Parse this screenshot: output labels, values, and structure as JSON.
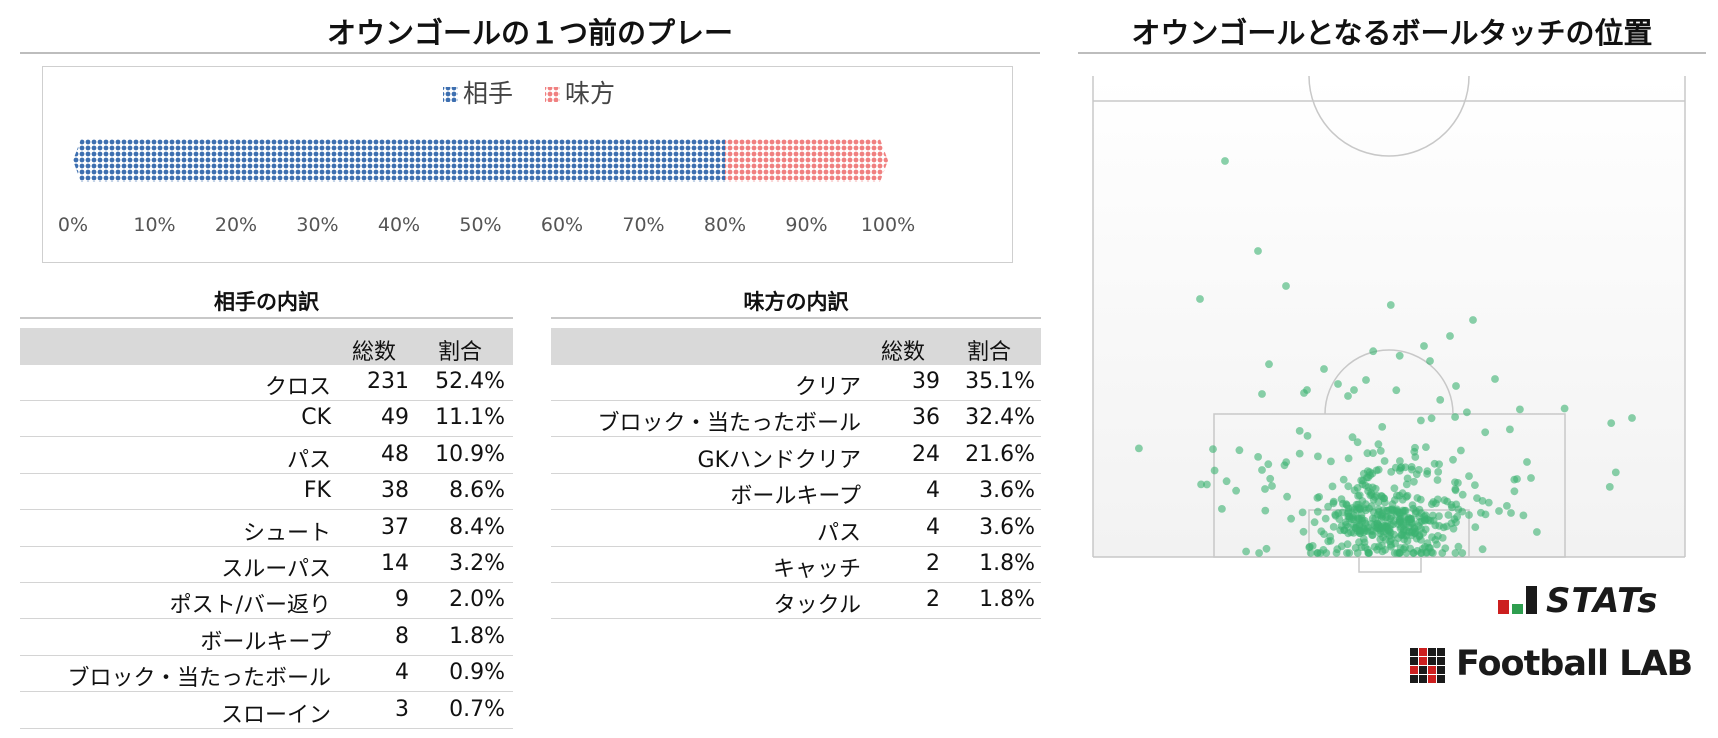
{
  "left_title": "オウンゴールの１つ前のプレー",
  "right_title": "オウンゴールとなるボールタッチの位置",
  "chart_data": [
    {
      "type": "bar",
      "orientation": "horizontal-stacked-100",
      "series": [
        {
          "name": "相手",
          "values": [
            80
          ],
          "color": "#3d6fb0"
        },
        {
          "name": "味方",
          "values": [
            20
          ],
          "color": "#f08080"
        }
      ],
      "xticks": [
        "0%",
        "10%",
        "20%",
        "30%",
        "40%",
        "50%",
        "60%",
        "70%",
        "80%",
        "90%",
        "100%"
      ],
      "xlim": [
        0,
        100
      ],
      "legend": "top-center",
      "grid": false
    },
    {
      "type": "scatter",
      "color": "#3cb371"
    }
  ],
  "opponent_table": {
    "title": "相手の内訳",
    "headers": {
      "total": "総数",
      "ratio": "割合"
    },
    "rows": [
      {
        "label": "クロス",
        "total": "231",
        "ratio": "52.4%"
      },
      {
        "label": "CK",
        "total": "49",
        "ratio": "11.1%"
      },
      {
        "label": "パス",
        "total": "48",
        "ratio": "10.9%"
      },
      {
        "label": "FK",
        "total": "38",
        "ratio": "8.6%"
      },
      {
        "label": "シュート",
        "total": "37",
        "ratio": "8.4%"
      },
      {
        "label": "スルーパス",
        "total": "14",
        "ratio": "3.2%"
      },
      {
        "label": "ポスト/バー返り",
        "total": "9",
        "ratio": "2.0%"
      },
      {
        "label": "ボールキープ",
        "total": "8",
        "ratio": "1.8%"
      },
      {
        "label": "ブロック・当たったボール",
        "total": "4",
        "ratio": "0.9%"
      },
      {
        "label": "スローイン",
        "total": "3",
        "ratio": "0.7%"
      }
    ]
  },
  "own_table": {
    "title": "味方の内訳",
    "headers": {
      "total": "総数",
      "ratio": "割合"
    },
    "rows": [
      {
        "label": "クリア",
        "total": "39",
        "ratio": "35.1%"
      },
      {
        "label": "ブロック・当たったボール",
        "total": "36",
        "ratio": "32.4%"
      },
      {
        "label": "GKハンドクリア",
        "total": "24",
        "ratio": "21.6%"
      },
      {
        "label": "ボールキープ",
        "total": "4",
        "ratio": "3.6%"
      },
      {
        "label": "パス",
        "total": "4",
        "ratio": "3.6%"
      },
      {
        "label": "キャッチ",
        "total": "2",
        "ratio": "1.8%"
      },
      {
        "label": "タックル",
        "total": "2",
        "ratio": "1.8%"
      }
    ]
  },
  "logos": {
    "stats": "STATs",
    "football_lab": "Football LAB"
  },
  "colors": {
    "opponent": "#3d6fb0",
    "own": "#f08080",
    "scatter": "#3cb371",
    "header_bg": "#d9d9d9"
  }
}
